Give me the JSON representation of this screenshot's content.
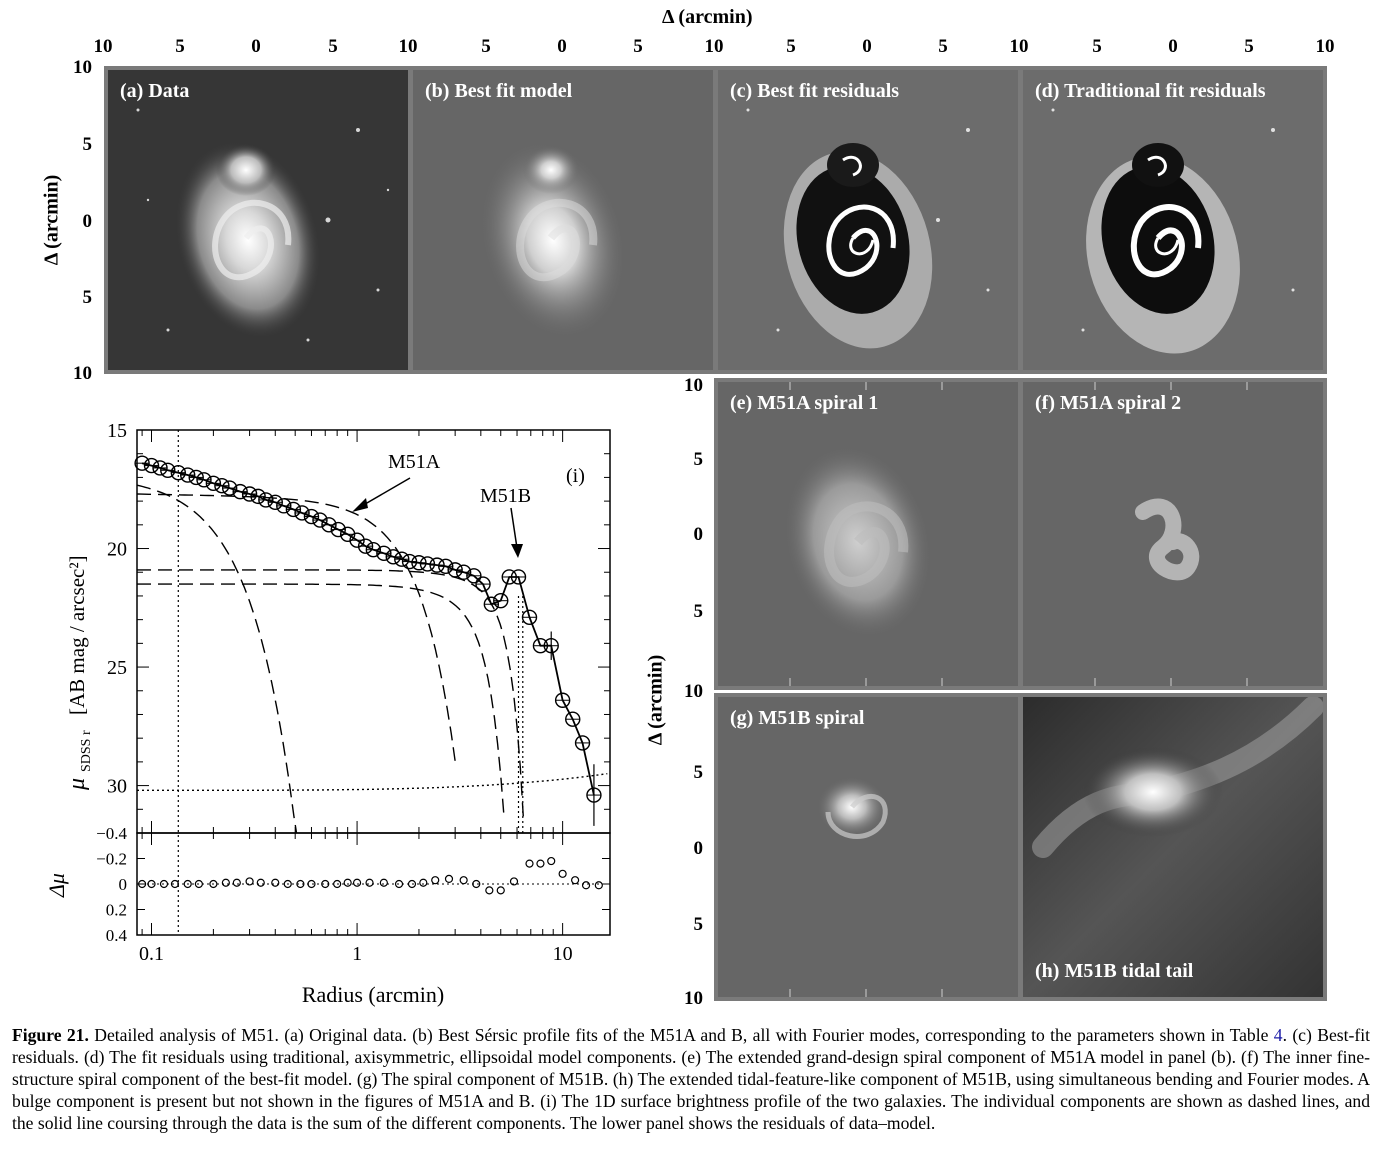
{
  "top_axis": {
    "title": "Δ (arcmin)",
    "ticks": [
      "10",
      "5",
      "0",
      "5",
      "10",
      "5",
      "0",
      "5",
      "10",
      "5",
      "0",
      "5",
      "10",
      "5",
      "0",
      "5",
      "10"
    ]
  },
  "left_axis_top": {
    "title": "Δ (arcmin)",
    "ticks": [
      "10",
      "5",
      "0",
      "5",
      "10"
    ]
  },
  "right_axis": {
    "title": "Δ (arcmin)",
    "ticks_upper": [
      "10",
      "5",
      "0",
      "5"
    ],
    "ticks_lower": [
      "10",
      "5",
      "0",
      "5",
      "10"
    ]
  },
  "panels": {
    "a": "(a) Data",
    "b": "(b) Best fit model",
    "c": "(c) Best fit residuals",
    "d": "(d) Traditional fit residuals",
    "e": "(e) M51A spiral 1",
    "f": "(f) M51A spiral 2",
    "g": "(g) M51B spiral",
    "h": "(h) M51B tidal tail"
  },
  "profile_plot": {
    "panel_label": "(i)",
    "annotation_a": "M51A",
    "annotation_b": "M51B",
    "ylabel": "μSDSS r [AB mag / arcsec²]",
    "ylabel_main": "μ",
    "ylabel_sub": "SDSS r",
    "ylabel_units": "[AB mag / arcsec²]",
    "resid_ylabel": "Δμ",
    "xlabel": "Radius (arcmin)",
    "yticks": [
      "15",
      "20",
      "25",
      "30"
    ],
    "resid_yticks": [
      "−0.4",
      "−0.2",
      "0",
      "0.2",
      "0.4"
    ],
    "xticks": [
      "0.1",
      "1",
      "10"
    ]
  },
  "chart_data": {
    "type": "scatter",
    "title": "",
    "xlabel": "Radius (arcmin)",
    "ylabel": "μSDSS r [AB mag / arcsec²]",
    "xscale": "log",
    "xlim": [
      0.085,
      17
    ],
    "ylim": [
      32,
      15
    ],
    "series": [
      {
        "name": "M51A",
        "x": [
          0.09,
          0.1,
          0.11,
          0.12,
          0.135,
          0.15,
          0.165,
          0.18,
          0.2,
          0.22,
          0.24,
          0.27,
          0.3,
          0.33,
          0.36,
          0.4,
          0.44,
          0.49,
          0.54,
          0.6,
          0.66,
          0.73,
          0.81,
          0.9,
          1.0,
          1.1,
          1.2,
          1.35,
          1.5,
          1.65,
          1.8,
          2.0,
          2.2,
          2.45,
          2.7,
          3.0,
          3.3,
          3.7,
          4.1,
          4.5,
          5.0,
          5.5
        ],
        "y": [
          16.4,
          16.5,
          16.6,
          16.7,
          16.8,
          16.9,
          17.0,
          17.1,
          17.25,
          17.35,
          17.45,
          17.6,
          17.7,
          17.8,
          17.95,
          18.05,
          18.2,
          18.35,
          18.5,
          18.65,
          18.8,
          19.0,
          19.2,
          19.4,
          19.65,
          19.9,
          20.05,
          20.2,
          20.35,
          20.45,
          20.55,
          20.6,
          20.65,
          20.7,
          20.75,
          20.9,
          21.0,
          21.15,
          21.5,
          22.35,
          22.2,
          21.2
        ]
      },
      {
        "name": "M51B",
        "x": [
          6.1,
          6.9,
          7.8,
          8.8,
          10.0,
          11.2,
          12.5,
          14.2
        ],
        "y": [
          21.2,
          22.9,
          24.1,
          24.1,
          26.4,
          27.2,
          28.2,
          30.4
        ]
      }
    ],
    "residuals": {
      "ylabel": "Δμ",
      "ylim": [
        0.4,
        -0.4
      ],
      "x": [
        0.09,
        0.1,
        0.115,
        0.13,
        0.15,
        0.17,
        0.2,
        0.23,
        0.26,
        0.3,
        0.34,
        0.4,
        0.46,
        0.53,
        0.6,
        0.7,
        0.8,
        0.9,
        1.0,
        1.15,
        1.35,
        1.6,
        1.85,
        2.1,
        2.4,
        2.8,
        3.3,
        3.8,
        4.4,
        5.0,
        5.8,
        6.9,
        7.8,
        8.8,
        10.0,
        11.5,
        13.0,
        15.0
      ],
      "y": [
        0.0,
        0.0,
        0.0,
        0.0,
        0.0,
        0.0,
        0.0,
        -0.01,
        -0.01,
        -0.02,
        -0.01,
        -0.01,
        0.0,
        0.0,
        0.0,
        0.0,
        0.0,
        -0.01,
        -0.01,
        -0.01,
        -0.01,
        0.0,
        0.0,
        -0.01,
        -0.03,
        -0.04,
        -0.03,
        0.0,
        0.05,
        0.05,
        -0.02,
        -0.16,
        -0.16,
        -0.18,
        -0.08,
        -0.03,
        0.01,
        0.01
      ]
    }
  },
  "caption": {
    "label": "Figure 21.",
    "text_1": " Detailed analysis of M51. (a) Original data. (b) Best Sérsic profile fits of the M51A and B, all with Fourier modes, corresponding to the parameters shown in Table ",
    "table_ref": "4",
    "text_2": ". (c) Best-fit residuals. (d) The fit residuals using traditional, axisymmetric, ellipsoidal model components. (e) The extended grand-design spiral component of M51A model in panel (b). (f) The inner fine-structure spiral component of the best-fit model. (g) The spiral component of M51B. (h) The extended tidal-feature-like component of M51B, using simultaneous bending and Fourier modes. A bulge component is present but not shown in the figures of M51A and B. (i) The 1D surface brightness profile of the two galaxies. The individual components are shown as dashed lines, and the solid line coursing through the data is the sum of the different components. The lower panel shows the residuals of data–model."
  }
}
